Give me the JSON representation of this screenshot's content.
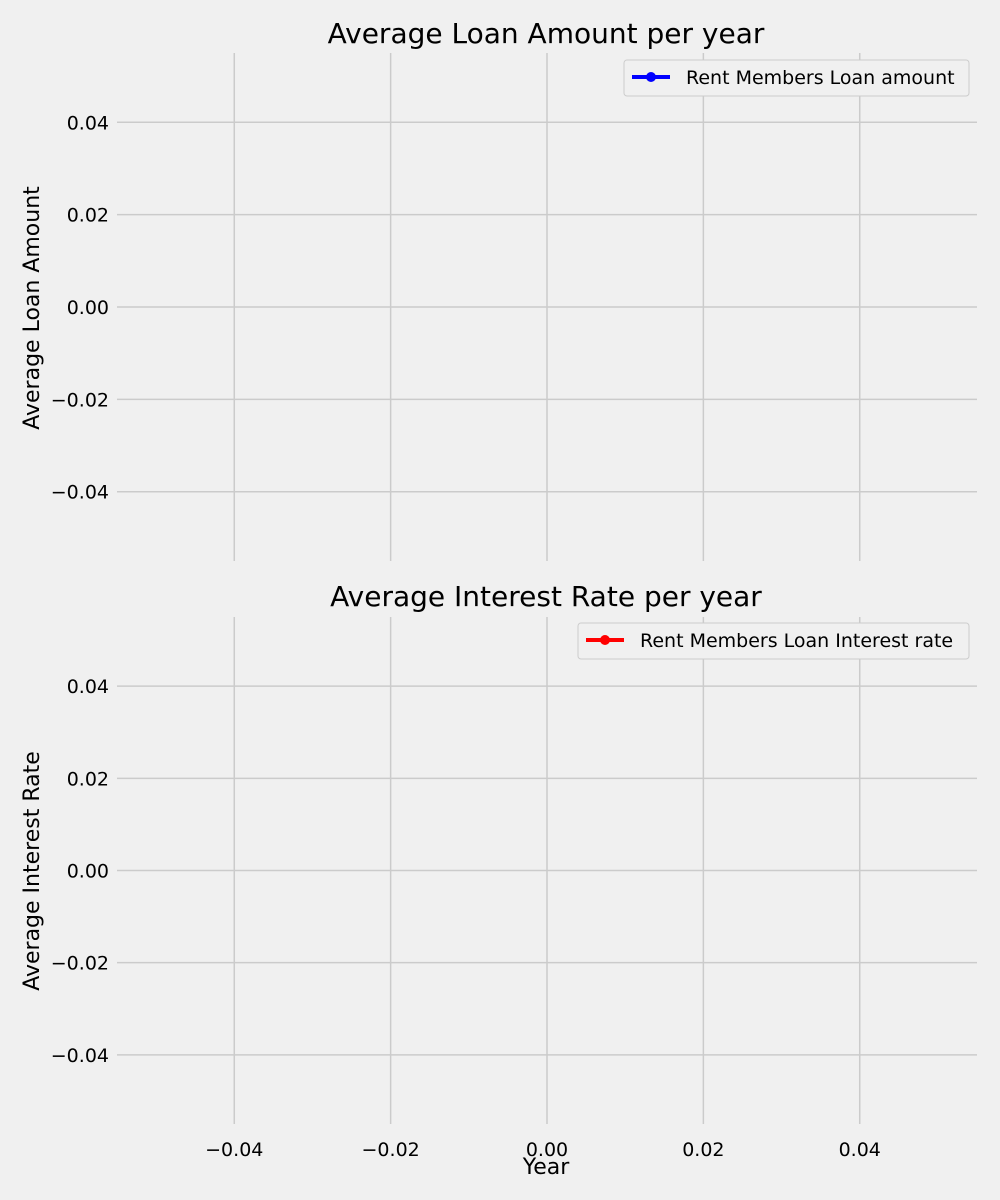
{
  "figure": {
    "background": "#f0f0f0",
    "grid_color": "#cbcbcb",
    "shared_x": true
  },
  "chart_data": [
    {
      "id": "loan",
      "type": "line",
      "title": "Average Loan Amount per year",
      "xlabel": "",
      "ylabel": "Average Loan Amount",
      "x_ticks": [
        "−0.04",
        "−0.02",
        "0.00",
        "0.02",
        "0.04"
      ],
      "x_tick_values": [
        -0.04,
        -0.02,
        0.0,
        0.02,
        0.04
      ],
      "y_ticks": [
        "0.04",
        "0.02",
        "0.00",
        "−0.02",
        "−0.04"
      ],
      "y_tick_values": [
        0.04,
        0.02,
        0.0,
        -0.02,
        -0.04
      ],
      "xlim": [
        -0.055,
        0.055
      ],
      "ylim": [
        -0.055,
        0.055
      ],
      "grid": true,
      "legend_position": "upper right",
      "series": [
        {
          "name": "Rent Members Loan amount",
          "color": "#0000ff",
          "marker": "circle",
          "x": [],
          "y": []
        }
      ]
    },
    {
      "id": "rate",
      "type": "line",
      "title": "Average Interest Rate per year",
      "xlabel": "Year",
      "ylabel": "Average Interest Rate",
      "x_ticks": [
        "−0.04",
        "−0.02",
        "0.00",
        "0.02",
        "0.04"
      ],
      "x_tick_values": [
        -0.04,
        -0.02,
        0.0,
        0.02,
        0.04
      ],
      "y_ticks": [
        "0.04",
        "0.02",
        "0.00",
        "−0.02",
        "−0.04"
      ],
      "y_tick_values": [
        0.04,
        0.02,
        0.0,
        -0.02,
        -0.04
      ],
      "xlim": [
        -0.055,
        0.055
      ],
      "ylim": [
        -0.055,
        0.055
      ],
      "grid": true,
      "legend_position": "upper right",
      "series": [
        {
          "name": "Rent Members Loan Interest rate",
          "color": "#ff0000",
          "marker": "circle",
          "x": [],
          "y": []
        }
      ]
    }
  ]
}
